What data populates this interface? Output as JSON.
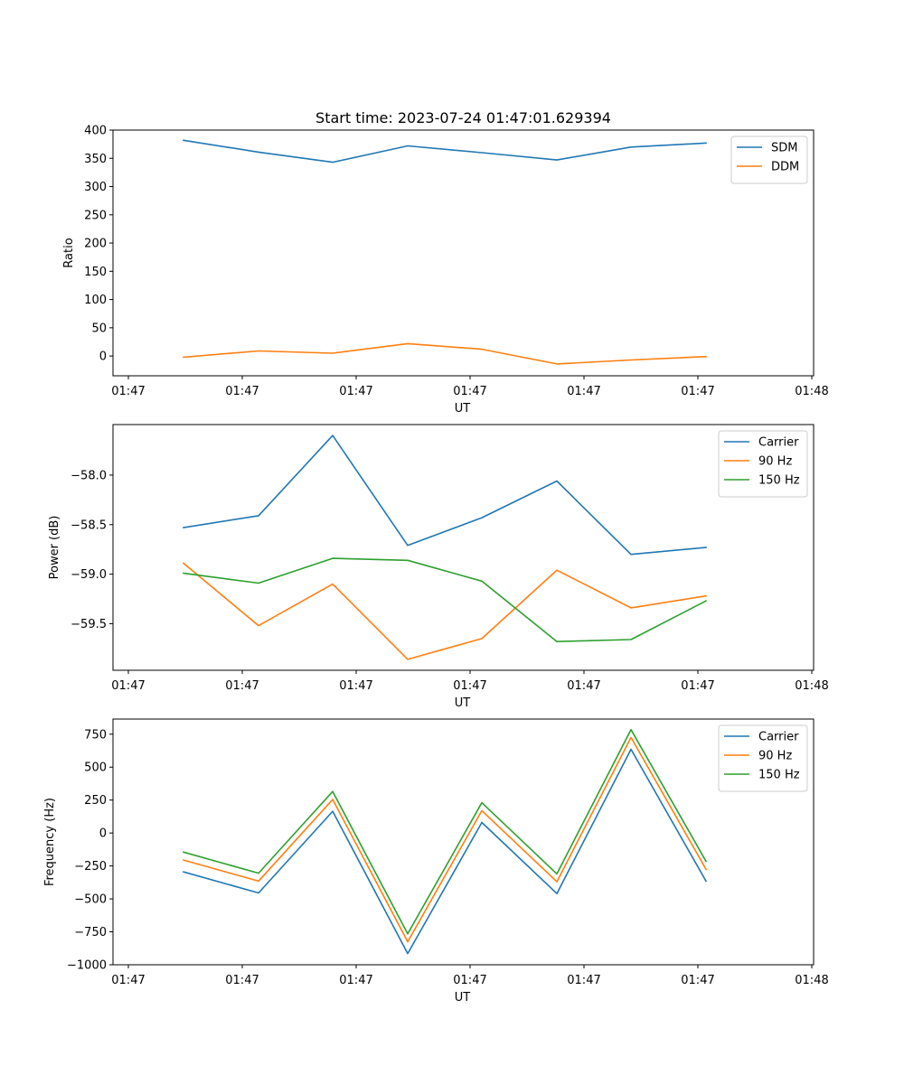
{
  "chart_data": [
    {
      "type": "line",
      "title": "Start time: 2023-07-24 01:47:01.629394",
      "xlabel": "UT",
      "ylabel": "Ratio",
      "x_tick_labels": [
        "01:47",
        "01:47",
        "01:47",
        "01:47",
        "01:47",
        "01:47",
        "01:48"
      ],
      "ylim": [
        -35,
        400
      ],
      "yticks": [
        0,
        50,
        100,
        150,
        200,
        250,
        300,
        350,
        400
      ],
      "ytick_labels": [
        "0",
        "50",
        "100",
        "150",
        "200",
        "250",
        "300",
        "350",
        "400"
      ],
      "legend_position": "top-right",
      "series": [
        {
          "name": "SDM",
          "color": "#1f77b4",
          "values": [
            382,
            361,
            343,
            372,
            360,
            347,
            370,
            377
          ]
        },
        {
          "name": "DDM",
          "color": "#ff7f0e",
          "values": [
            -2,
            9,
            5,
            22,
            12,
            -14,
            -7,
            -1
          ]
        }
      ]
    },
    {
      "type": "line",
      "title": "",
      "xlabel": "UT",
      "ylabel": "Power (dB)",
      "x_tick_labels": [
        "01:47",
        "01:47",
        "01:47",
        "01:47",
        "01:47",
        "01:47",
        "01:48"
      ],
      "ylim": [
        -59.97,
        -57.49
      ],
      "yticks": [
        -59.5,
        -59.0,
        -58.5,
        -58.0
      ],
      "ytick_labels": [
        "−59.5",
        "−59.0",
        "−58.5",
        "−58.0"
      ],
      "legend_position": "top-right",
      "series": [
        {
          "name": "Carrier",
          "color": "#1f77b4",
          "values": [
            -58.53,
            -58.41,
            -57.6,
            -58.71,
            -58.43,
            -58.06,
            -58.8,
            -58.73
          ]
        },
        {
          "name": "90 Hz",
          "color": "#ff7f0e",
          "values": [
            -58.89,
            -59.52,
            -59.1,
            -59.86,
            -59.65,
            -58.96,
            -59.34,
            -59.22
          ]
        },
        {
          "name": "150 Hz",
          "color": "#2ca02c",
          "values": [
            -58.99,
            -59.09,
            -58.84,
            -58.86,
            -59.07,
            -59.68,
            -59.66,
            -59.27
          ]
        }
      ]
    },
    {
      "type": "line",
      "title": "",
      "xlabel": "UT",
      "ylabel": "Frequency (Hz)",
      "x_tick_labels": [
        "01:47",
        "01:47",
        "01:47",
        "01:47",
        "01:47",
        "01:47",
        "01:48"
      ],
      "ylim": [
        -1000,
        865
      ],
      "yticks": [
        -1000,
        -750,
        -500,
        -250,
        0,
        250,
        500,
        750
      ],
      "ytick_labels": [
        "−1000",
        "−750",
        "−500",
        "−250",
        "0",
        "250",
        "500",
        "750"
      ],
      "legend_position": "top-right",
      "series": [
        {
          "name": "Carrier",
          "color": "#1f77b4",
          "values": [
            -295,
            -455,
            165,
            -915,
            80,
            -460,
            635,
            -365
          ]
        },
        {
          "name": "90 Hz",
          "color": "#ff7f0e",
          "values": [
            -205,
            -365,
            255,
            -825,
            170,
            -370,
            725,
            -275
          ]
        },
        {
          "name": "150 Hz",
          "color": "#2ca02c",
          "values": [
            -145,
            -305,
            315,
            -765,
            230,
            -310,
            785,
            -215
          ]
        }
      ]
    }
  ]
}
